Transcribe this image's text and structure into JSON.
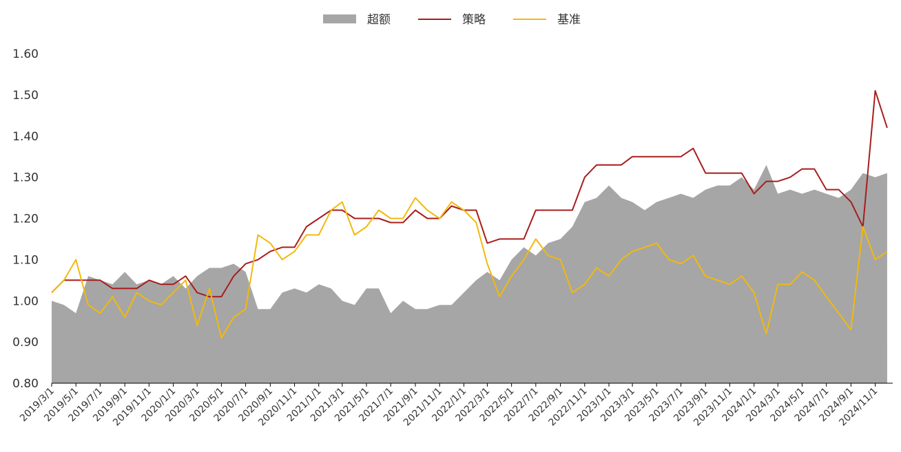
{
  "chart_data": {
    "type": "line",
    "legend": [
      {
        "label": "超额",
        "kind": "area",
        "color": "#a6a6a6"
      },
      {
        "label": "策略",
        "kind": "line",
        "color": "#a81c1c"
      },
      {
        "label": "基准",
        "kind": "line",
        "color": "#f2b90c"
      }
    ],
    "legend_position": "top-center",
    "ylim": [
      0.8,
      1.6
    ],
    "yticks": [
      "0.80",
      "0.90",
      "1.00",
      "1.10",
      "1.20",
      "1.30",
      "1.40",
      "1.50",
      "1.60"
    ],
    "xticks": [
      "2019/3/1",
      "2019/5/1",
      "2019/7/1",
      "2019/9/1",
      "2019/11/1",
      "2020/1/1",
      "2020/3/1",
      "2020/5/1",
      "2020/7/1",
      "2020/9/1",
      "2020/11/1",
      "2021/1/1",
      "2021/3/1",
      "2021/5/1",
      "2021/7/1",
      "2021/9/1",
      "2021/11/1",
      "2022/1/1",
      "2022/3/1",
      "2022/5/1",
      "2022/7/1",
      "2022/9/1",
      "2022/11/1",
      "2023/1/1",
      "2023/3/1",
      "2023/5/1",
      "2023/7/1",
      "2023/9/1",
      "2023/11/1",
      "2024/1/1",
      "2024/3/1",
      "2024/5/1",
      "2024/7/1",
      "2024/9/1",
      "2024/11/1"
    ],
    "grid": false,
    "series": [
      {
        "name": "超额",
        "x": [
          "2019/3/1",
          "2019/4/1",
          "2019/5/1",
          "2019/6/1",
          "2019/7/1",
          "2019/8/1",
          "2019/9/1",
          "2019/10/1",
          "2019/11/1",
          "2019/12/1",
          "2020/1/1",
          "2020/2/1",
          "2020/3/1",
          "2020/4/1",
          "2020/5/1",
          "2020/6/1",
          "2020/7/1",
          "2020/8/1",
          "2020/9/1",
          "2020/10/1",
          "2020/11/1",
          "2020/12/1",
          "2021/1/1",
          "2021/2/1",
          "2021/3/1",
          "2021/4/1",
          "2021/5/1",
          "2021/6/1",
          "2021/7/1",
          "2021/8/1",
          "2021/9/1",
          "2021/10/1",
          "2021/11/1",
          "2021/12/1",
          "2022/1/1",
          "2022/2/1",
          "2022/3/1",
          "2022/4/1",
          "2022/5/1",
          "2022/6/1",
          "2022/7/1",
          "2022/8/1",
          "2022/9/1",
          "2022/10/1",
          "2022/11/1",
          "2022/12/1",
          "2023/1/1",
          "2023/2/1",
          "2023/3/1",
          "2023/4/1",
          "2023/5/1",
          "2023/6/1",
          "2023/7/1",
          "2023/8/1",
          "2023/9/1",
          "2023/10/1",
          "2023/11/1",
          "2023/12/1",
          "2024/1/1",
          "2024/2/1",
          "2024/3/1",
          "2024/4/1",
          "2024/5/1",
          "2024/6/1",
          "2024/7/1",
          "2024/8/1",
          "2024/9/1",
          "2024/10/1",
          "2024/11/1",
          "2024/12/1"
        ],
        "values": [
          1.0,
          0.99,
          0.97,
          1.06,
          1.05,
          1.04,
          1.07,
          1.04,
          1.05,
          1.04,
          1.06,
          1.03,
          1.06,
          1.08,
          1.08,
          1.09,
          1.07,
          0.98,
          0.98,
          1.02,
          1.03,
          1.02,
          1.04,
          1.03,
          1.0,
          0.99,
          1.03,
          1.03,
          0.97,
          1.0,
          0.98,
          0.98,
          0.99,
          0.99,
          1.02,
          1.05,
          1.07,
          1.05,
          1.1,
          1.13,
          1.11,
          1.14,
          1.15,
          1.18,
          1.24,
          1.25,
          1.28,
          1.25,
          1.24,
          1.22,
          1.24,
          1.25,
          1.26,
          1.25,
          1.27,
          1.28,
          1.28,
          1.3,
          1.27,
          1.33,
          1.26,
          1.27,
          1.26,
          1.27,
          1.26,
          1.25,
          1.27,
          1.31,
          1.3,
          1.31
        ]
      },
      {
        "name": "策略",
        "x": [
          "2019/3/1",
          "2019/4/1",
          "2019/5/1",
          "2019/6/1",
          "2019/7/1",
          "2019/8/1",
          "2019/9/1",
          "2019/10/1",
          "2019/11/1",
          "2019/12/1",
          "2020/1/1",
          "2020/2/1",
          "2020/3/1",
          "2020/4/1",
          "2020/5/1",
          "2020/6/1",
          "2020/7/1",
          "2020/8/1",
          "2020/9/1",
          "2020/10/1",
          "2020/11/1",
          "2020/12/1",
          "2021/1/1",
          "2021/2/1",
          "2021/3/1",
          "2021/4/1",
          "2021/5/1",
          "2021/6/1",
          "2021/7/1",
          "2021/8/1",
          "2021/9/1",
          "2021/10/1",
          "2021/11/1",
          "2021/12/1",
          "2022/1/1",
          "2022/2/1",
          "2022/3/1",
          "2022/4/1",
          "2022/5/1",
          "2022/6/1",
          "2022/7/1",
          "2022/8/1",
          "2022/9/1",
          "2022/10/1",
          "2022/11/1",
          "2022/12/1",
          "2023/1/1",
          "2023/2/1",
          "2023/3/1",
          "2023/4/1",
          "2023/5/1",
          "2023/6/1",
          "2023/7/1",
          "2023/8/1",
          "2023/9/1",
          "2023/10/1",
          "2023/11/1",
          "2023/12/1",
          "2024/1/1",
          "2024/2/1",
          "2024/3/1",
          "2024/4/1",
          "2024/5/1",
          "2024/6/1",
          "2024/7/1",
          "2024/8/1",
          "2024/9/1",
          "2024/10/1",
          "2024/11/1",
          "2024/12/1"
        ],
        "values": [
          1.02,
          1.05,
          1.05,
          1.05,
          1.05,
          1.03,
          1.03,
          1.03,
          1.05,
          1.04,
          1.04,
          1.06,
          1.02,
          1.01,
          1.01,
          1.06,
          1.09,
          1.1,
          1.12,
          1.13,
          1.13,
          1.18,
          1.2,
          1.22,
          1.22,
          1.2,
          1.2,
          1.2,
          1.19,
          1.19,
          1.22,
          1.2,
          1.2,
          1.23,
          1.22,
          1.22,
          1.14,
          1.15,
          1.15,
          1.15,
          1.22,
          1.22,
          1.22,
          1.22,
          1.3,
          1.33,
          1.33,
          1.33,
          1.35,
          1.35,
          1.35,
          1.35,
          1.35,
          1.37,
          1.31,
          1.31,
          1.31,
          1.31,
          1.26,
          1.29,
          1.29,
          1.3,
          1.32,
          1.32,
          1.27,
          1.27,
          1.24,
          1.18,
          1.51,
          1.42
        ]
      },
      {
        "name": "基准",
        "x": [
          "2019/3/1",
          "2019/4/1",
          "2019/5/1",
          "2019/6/1",
          "2019/7/1",
          "2019/8/1",
          "2019/9/1",
          "2019/10/1",
          "2019/11/1",
          "2019/12/1",
          "2020/1/1",
          "2020/2/1",
          "2020/3/1",
          "2020/4/1",
          "2020/5/1",
          "2020/6/1",
          "2020/7/1",
          "2020/8/1",
          "2020/9/1",
          "2020/10/1",
          "2020/11/1",
          "2020/12/1",
          "2021/1/1",
          "2021/2/1",
          "2021/3/1",
          "2021/4/1",
          "2021/5/1",
          "2021/6/1",
          "2021/7/1",
          "2021/8/1",
          "2021/9/1",
          "2021/10/1",
          "2021/11/1",
          "2021/12/1",
          "2022/1/1",
          "2022/2/1",
          "2022/3/1",
          "2022/4/1",
          "2022/5/1",
          "2022/6/1",
          "2022/7/1",
          "2022/8/1",
          "2022/9/1",
          "2022/10/1",
          "2022/11/1",
          "2022/12/1",
          "2023/1/1",
          "2023/2/1",
          "2023/3/1",
          "2023/4/1",
          "2023/5/1",
          "2023/6/1",
          "2023/7/1",
          "2023/8/1",
          "2023/9/1",
          "2023/10/1",
          "2023/11/1",
          "2023/12/1",
          "2024/1/1",
          "2024/2/1",
          "2024/3/1",
          "2024/4/1",
          "2024/5/1",
          "2024/6/1",
          "2024/7/1",
          "2024/8/1",
          "2024/9/1",
          "2024/10/1",
          "2024/11/1",
          "2024/12/1"
        ],
        "values": [
          1.02,
          1.05,
          1.1,
          0.99,
          0.97,
          1.01,
          0.96,
          1.02,
          1.0,
          0.99,
          1.02,
          1.05,
          0.94,
          1.03,
          0.91,
          0.96,
          0.98,
          1.16,
          1.14,
          1.1,
          1.12,
          1.16,
          1.16,
          1.22,
          1.24,
          1.16,
          1.18,
          1.22,
          1.2,
          1.2,
          1.25,
          1.22,
          1.2,
          1.24,
          1.22,
          1.19,
          1.09,
          1.01,
          1.06,
          1.1,
          1.15,
          1.11,
          1.1,
          1.02,
          1.04,
          1.08,
          1.06,
          1.1,
          1.12,
          1.13,
          1.14,
          1.1,
          1.09,
          1.11,
          1.06,
          1.05,
          1.04,
          1.06,
          1.02,
          0.92,
          1.04,
          1.04,
          1.07,
          1.05,
          1.01,
          0.97,
          0.93,
          1.18,
          1.1,
          1.12
        ]
      }
    ]
  }
}
